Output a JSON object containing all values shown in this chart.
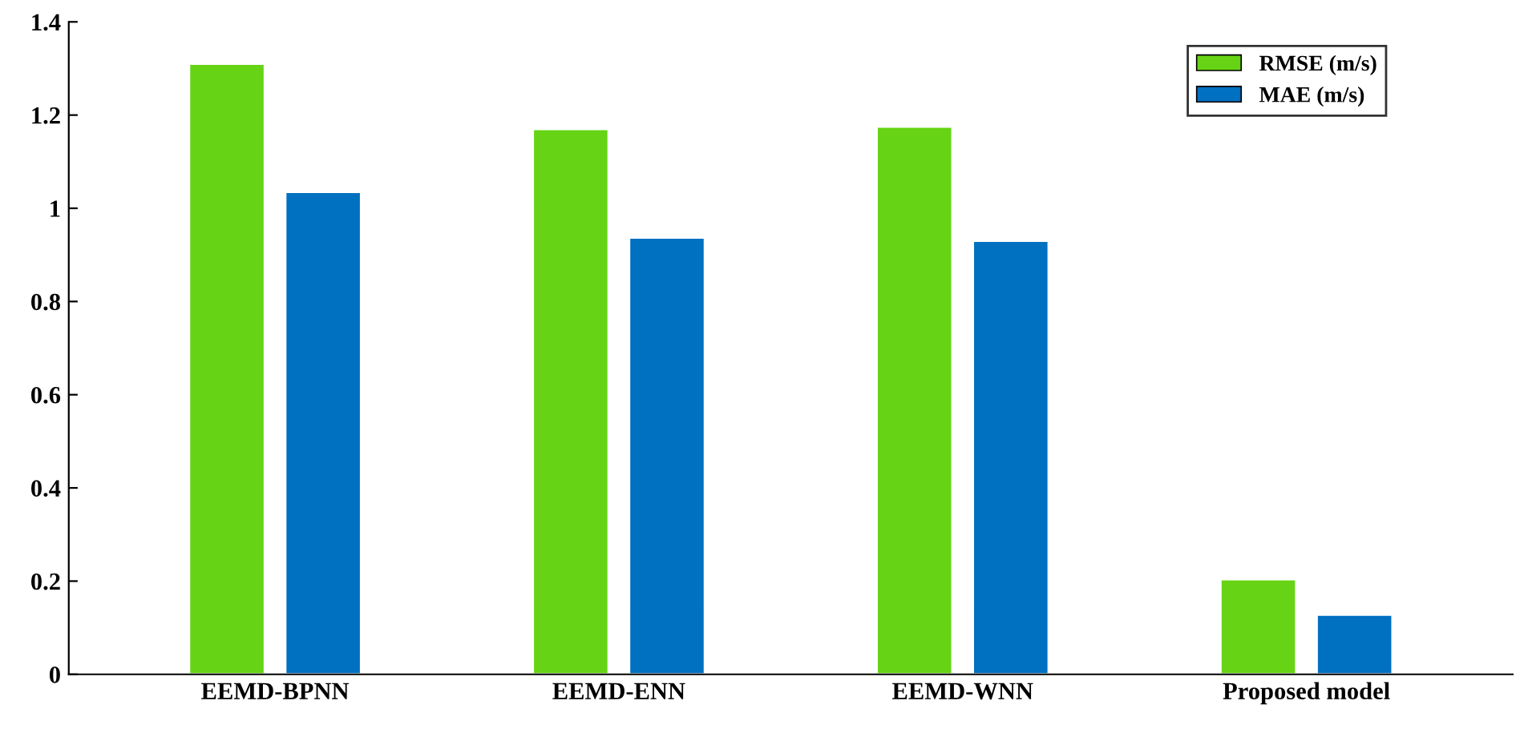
{
  "chart_data": {
    "type": "bar",
    "categories": [
      "EEMD-BPNN",
      "EEMD-ENN",
      "EEMD-WNN",
      "Proposed model"
    ],
    "series": [
      {
        "name": "RMSE (m/s)",
        "color": "#66d414",
        "values": [
          1.31,
          1.17,
          1.175,
          0.204
        ]
      },
      {
        "name": "MAE (m/s)",
        "color": "#0070c0",
        "values": [
          1.035,
          0.937,
          0.93,
          0.128
        ]
      }
    ],
    "ylim": [
      0,
      1.4
    ],
    "yticks": [
      0,
      {
        "value": 0.2,
        "label": "0.2"
      },
      {
        "value": 0.4,
        "label": "0.4"
      },
      {
        "value": 0.6,
        "label": "0.6"
      },
      {
        "value": 0.8,
        "label": "0.8"
      },
      1,
      {
        "value": 1.2,
        "label": "1.2"
      },
      {
        "value": 1.4,
        "label": "1.4"
      }
    ],
    "grid": false,
    "legend": "top right"
  }
}
